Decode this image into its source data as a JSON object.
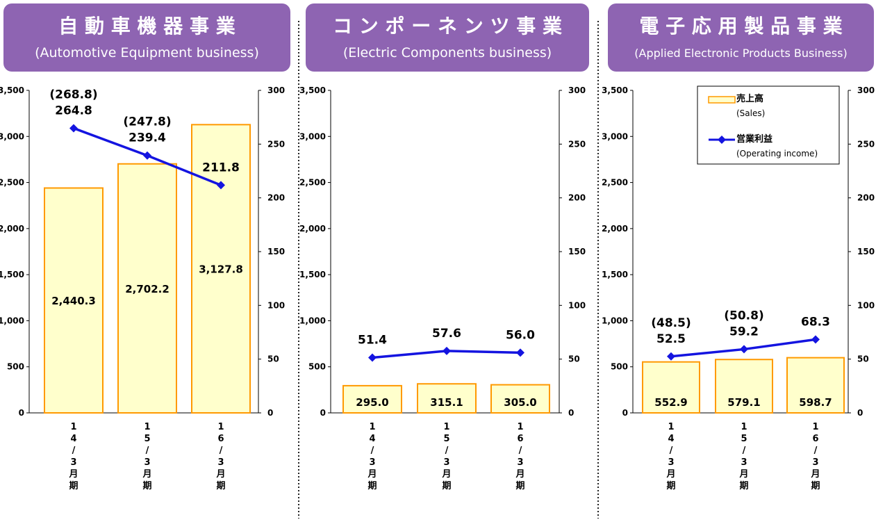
{
  "palette": {
    "banner": "#8e64b2",
    "banner_text": "#ffffff",
    "bar_fill": "#ffffcc",
    "bar_stroke": "#ff9900",
    "line": "#1414e0",
    "text": "#000000",
    "divider": "#222222"
  },
  "chart_data": [
    {
      "type": "bar",
      "banner": {
        "title": "自 動 車 機 器 事 業",
        "subtitle": "(Automotive Equipment business)"
      },
      "categories": [
        "1\n4\n/\n3\n月\n期",
        "1\n5\n/\n3\n月\n期",
        "1\n6\n/\n3\n月\n期"
      ],
      "left_axis": {
        "ylim": [
          0,
          3500
        ],
        "ticks": [
          "0",
          "500",
          "1,000",
          "1,500",
          "2,000",
          "2,500",
          "3,000",
          "3,500"
        ]
      },
      "right_axis": {
        "ylim": [
          0,
          300
        ],
        "ticks": [
          "0",
          "50",
          "100",
          "150",
          "200",
          "250",
          "300"
        ]
      },
      "series": [
        {
          "name": "売上高 (Sales)",
          "type": "bar",
          "axis": "left",
          "values": [
            2440.3,
            2702.2,
            3127.8
          ],
          "labels": [
            "2,440.3",
            "2,702.2",
            "3,127.8"
          ]
        },
        {
          "name": "営業利益 (Operating income)",
          "type": "line",
          "axis": "right",
          "values": [
            264.8,
            239.4,
            211.8
          ],
          "labels": [
            "264.8",
            "239.4",
            "211.8"
          ],
          "paren_labels": [
            "(268.8)",
            "(247.8)",
            ""
          ]
        }
      ],
      "legend": null
    },
    {
      "type": "bar",
      "banner": {
        "title": "コ ン ポ ー ネ ン ツ 事 業",
        "subtitle": "(Electric Components business)"
      },
      "categories": [
        "1\n4\n/\n3\n月\n期",
        "1\n5\n/\n3\n月\n期",
        "1\n6\n/\n3\n月\n期"
      ],
      "left_axis": {
        "ylim": [
          0,
          3500
        ],
        "ticks": [
          "0",
          "500",
          "1,000",
          "1,500",
          "2,000",
          "2,500",
          "3,000",
          "3,500"
        ]
      },
      "right_axis": {
        "ylim": [
          0,
          300
        ],
        "ticks": [
          "0",
          "50",
          "100",
          "150",
          "200",
          "250",
          "300"
        ]
      },
      "series": [
        {
          "name": "売上高 (Sales)",
          "type": "bar",
          "axis": "left",
          "values": [
            295.0,
            315.1,
            305.0
          ],
          "labels": [
            "295.0",
            "315.1",
            "305.0"
          ]
        },
        {
          "name": "営業利益 (Operating income)",
          "type": "line",
          "axis": "right",
          "values": [
            51.4,
            57.6,
            56.0
          ],
          "labels": [
            "51.4",
            "57.6",
            "56.0"
          ],
          "paren_labels": [
            "",
            "",
            ""
          ]
        }
      ],
      "legend": null
    },
    {
      "type": "bar",
      "banner": {
        "title": "電 子 応 用 製 品 事 業",
        "subtitle": "(Applied Electronic Products Business)"
      },
      "categories": [
        "1\n4\n/\n3\n月\n期",
        "1\n5\n/\n3\n月\n期",
        "1\n6\n/\n3\n月\n期"
      ],
      "left_axis": {
        "ylim": [
          0,
          3500
        ],
        "ticks": [
          "0",
          "500",
          "1,000",
          "1,500",
          "2,000",
          "2,500",
          "3,000",
          "3,500"
        ]
      },
      "right_axis": {
        "ylim": [
          0,
          300
        ],
        "ticks": [
          "0",
          "50",
          "100",
          "150",
          "200",
          "250",
          "300"
        ]
      },
      "series": [
        {
          "name": "売上高 (Sales)",
          "type": "bar",
          "axis": "left",
          "values": [
            552.9,
            579.1,
            598.7
          ],
          "labels": [
            "552.9",
            "579.1",
            "598.7"
          ]
        },
        {
          "name": "営業利益 (Operating income)",
          "type": "line",
          "axis": "right",
          "values": [
            52.5,
            59.2,
            68.3
          ],
          "labels": [
            "52.5",
            "59.2",
            "68.3"
          ],
          "paren_labels": [
            "(48.5)",
            "(50.8)",
            ""
          ]
        }
      ],
      "legend": {
        "position": "top-right",
        "items": [
          {
            "title": "売上高",
            "subtitle": "(Sales)",
            "kind": "bar"
          },
          {
            "title": "営業利益",
            "subtitle": "(Operating income)",
            "kind": "line"
          }
        ]
      }
    }
  ]
}
